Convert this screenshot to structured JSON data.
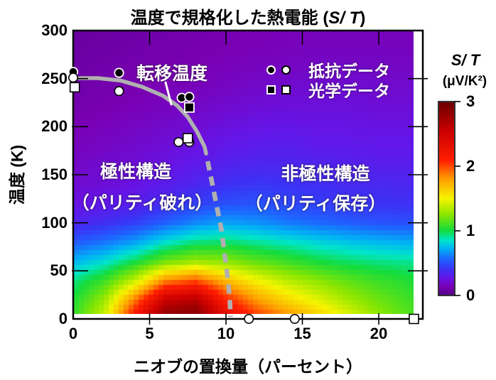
{
  "title": {
    "prefix": "温度で規格化した熱電能 (",
    "math": "S/ T",
    "suffix": ")"
  },
  "axes": {
    "x_label": "ニオブの置換量（パーセント）",
    "y_label": "温度 (K)",
    "x_ticks": [
      0,
      5,
      10,
      15,
      20
    ],
    "x_tick_labels": [
      "0",
      "5",
      "10",
      "15",
      "20"
    ],
    "y_ticks": [
      0,
      50,
      100,
      150,
      200,
      250,
      300
    ],
    "y_tick_labels": [
      "0",
      "50",
      "100",
      "150",
      "200",
      "250",
      "300"
    ]
  },
  "colorbar": {
    "title": "S/ T",
    "unit": "(μV/K²)",
    "tick_values": [
      0,
      1,
      2,
      3
    ],
    "tick_labels": [
      "0",
      "1",
      "2",
      "3"
    ],
    "min": 0,
    "max": 3
  },
  "legend": {
    "rows": [
      {
        "symbols": [
          "filled-circle",
          "open-circle"
        ],
        "label": "抵抗データ"
      },
      {
        "symbols": [
          "filled-square",
          "open-square"
        ],
        "label": "光学データ"
      }
    ]
  },
  "annotations": {
    "transition_label": "転移温度",
    "polar_line1": "極性構造",
    "polar_line2": "（パリティ破れ）",
    "nonpolar_line1": "非極性構造",
    "nonpolar_line2": "（パリティ保存）"
  },
  "chart_data": {
    "type": "heatmap",
    "title": "温度で規格化した熱電能 (S/T)",
    "xlabel": "ニオブの置換量（パーセント）",
    "ylabel": "温度 (K)",
    "zlabel": "S/T (μV/K²)",
    "x_range": [
      0,
      22.9
    ],
    "y_range": [
      0,
      300
    ],
    "z_range": [
      0,
      3
    ],
    "heat_x_max": 22.3,
    "heat_T_top": 300,
    "heat_T_bottom": 5,
    "grid_x": [
      0,
      2,
      4,
      6,
      8,
      10,
      12,
      14,
      16,
      18,
      20,
      22.3
    ],
    "grid_T": [
      300,
      280,
      260,
      240,
      220,
      200,
      180,
      160,
      140,
      120,
      100,
      80,
      60,
      40,
      20,
      0
    ],
    "values": [
      [
        0.06,
        0.07,
        0.08,
        0.09,
        0.1,
        0.11,
        0.12,
        0.13,
        0.14,
        0.14,
        0.14,
        0.14
      ],
      [
        0.07,
        0.08,
        0.09,
        0.1,
        0.11,
        0.12,
        0.13,
        0.14,
        0.15,
        0.15,
        0.15,
        0.15
      ],
      [
        0.08,
        0.09,
        0.1,
        0.11,
        0.12,
        0.14,
        0.15,
        0.16,
        0.17,
        0.17,
        0.17,
        0.16
      ],
      [
        0.09,
        0.1,
        0.11,
        0.13,
        0.14,
        0.16,
        0.18,
        0.19,
        0.2,
        0.2,
        0.19,
        0.19
      ],
      [
        0.1,
        0.11,
        0.13,
        0.15,
        0.17,
        0.19,
        0.21,
        0.22,
        0.22,
        0.22,
        0.21,
        0.21
      ],
      [
        0.12,
        0.14,
        0.16,
        0.18,
        0.2,
        0.23,
        0.25,
        0.26,
        0.25,
        0.25,
        0.24,
        0.24
      ],
      [
        0.14,
        0.16,
        0.18,
        0.21,
        0.24,
        0.27,
        0.29,
        0.3,
        0.28,
        0.28,
        0.27,
        0.27
      ],
      [
        0.17,
        0.19,
        0.21,
        0.24,
        0.28,
        0.32,
        0.34,
        0.34,
        0.33,
        0.31,
        0.3,
        0.3
      ],
      [
        0.19,
        0.21,
        0.24,
        0.29,
        0.34,
        0.39,
        0.41,
        0.4,
        0.38,
        0.36,
        0.35,
        0.34
      ],
      [
        0.24,
        0.27,
        0.3,
        0.37,
        0.44,
        0.49,
        0.5,
        0.46,
        0.44,
        0.41,
        0.4,
        0.39
      ],
      [
        0.33,
        0.38,
        0.44,
        0.54,
        0.63,
        0.68,
        0.65,
        0.6,
        0.56,
        0.53,
        0.5,
        0.49
      ],
      [
        0.52,
        0.58,
        0.68,
        0.83,
        0.93,
        0.95,
        0.9,
        0.85,
        0.8,
        0.76,
        0.73,
        0.7
      ],
      [
        0.72,
        0.82,
        0.98,
        1.18,
        1.28,
        1.24,
        1.15,
        1.08,
        1.0,
        0.95,
        0.92,
        0.9
      ],
      [
        0.92,
        1.08,
        1.38,
        1.85,
        1.98,
        1.7,
        1.5,
        1.35,
        1.25,
        1.15,
        1.08,
        1.02
      ],
      [
        1.02,
        1.28,
        1.88,
        2.55,
        2.65,
        2.1,
        1.8,
        1.6,
        1.45,
        1.3,
        1.18,
        1.08
      ],
      [
        1.08,
        1.42,
        2.25,
        2.92,
        2.98,
        2.4,
        2.1,
        1.88,
        1.68,
        1.48,
        1.28,
        1.12
      ]
    ],
    "colormap_stops": [
      [
        0.0,
        "#55008C"
      ],
      [
        0.12,
        "#7A00B4"
      ],
      [
        0.25,
        "#6614E6"
      ],
      [
        0.4,
        "#3C32F5"
      ],
      [
        0.55,
        "#1E64FF"
      ],
      [
        0.72,
        "#00B4F5"
      ],
      [
        0.85,
        "#00E6C8"
      ],
      [
        1.0,
        "#14DC3C"
      ],
      [
        1.25,
        "#8CE600"
      ],
      [
        1.5,
        "#F5F500"
      ],
      [
        1.8,
        "#FFA000"
      ],
      [
        2.1,
        "#FF1E00"
      ],
      [
        2.55,
        "#CC0000"
      ],
      [
        3.0,
        "#6E0000"
      ]
    ],
    "transition_curve_solid": [
      [
        0,
        250.5
      ],
      [
        1.6,
        250.5
      ],
      [
        3.1,
        248
      ],
      [
        4.5,
        241.5
      ],
      [
        5.9,
        232
      ],
      [
        6.8,
        222
      ],
      [
        7.5,
        210
      ],
      [
        8.1,
        195
      ],
      [
        8.6,
        179
      ],
      [
        8.7,
        172
      ]
    ],
    "transition_curve_dashed": [
      [
        8.8,
        164
      ],
      [
        9.1,
        141
      ],
      [
        9.4,
        117
      ],
      [
        9.7,
        93
      ],
      [
        9.9,
        69
      ],
      [
        10.1,
        44
      ],
      [
        10.25,
        21
      ],
      [
        10.3,
        2
      ]
    ],
    "curve_color": "#b0b0b0",
    "markers": {
      "resistance_filled_circles": [
        [
          0.0,
          257
        ],
        [
          3.0,
          256
        ],
        [
          7.1,
          230
        ],
        [
          7.6,
          231
        ]
      ],
      "resistance_open_circles": [
        [
          0.0,
          251
        ],
        [
          3.0,
          237
        ],
        [
          6.9,
          184
        ],
        [
          7.6,
          184
        ],
        [
          11.5,
          0
        ],
        [
          14.5,
          0
        ]
      ],
      "optical_filled_squares": [
        [
          7.6,
          220
        ]
      ],
      "optical_open_squares": [
        [
          0.1,
          241
        ],
        [
          7.5,
          188
        ],
        [
          22.3,
          0
        ]
      ]
    }
  }
}
